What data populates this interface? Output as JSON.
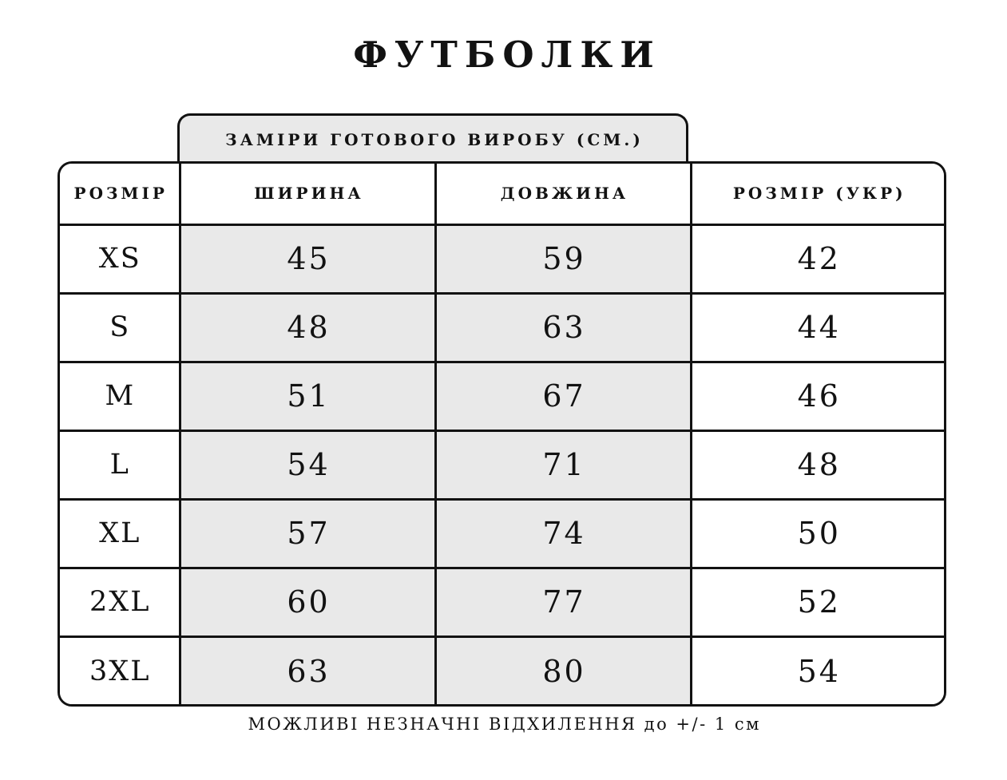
{
  "chart_data": {
    "type": "table",
    "title": "ФУТБОЛКИ",
    "banner": "ЗАМІРИ ГОТОВОГО ВИРОБУ (СМ.)",
    "columns": [
      "РОЗМІР",
      "ШИРИНА",
      "ДОВЖИНА",
      "РОЗМІР (УКР)"
    ],
    "rows": [
      [
        "XS",
        "45",
        "59",
        "42"
      ],
      [
        "S",
        "48",
        "63",
        "44"
      ],
      [
        "M",
        "51",
        "67",
        "46"
      ],
      [
        "L",
        "54",
        "71",
        "48"
      ],
      [
        "XL",
        "57",
        "74",
        "50"
      ],
      [
        "2XL",
        "60",
        "77",
        "52"
      ],
      [
        "3XL",
        "63",
        "80",
        "54"
      ]
    ],
    "footnote": "МОЖЛИВІ НЕЗНАЧНІ ВІДХИЛЕННЯ до +/- 1 см",
    "layout": {
      "shaded_columns": [
        "ШИРИНА",
        "ДОВЖИНА"
      ],
      "grid": "on",
      "legend": "none"
    }
  },
  "colors": {
    "background": "#ffffff",
    "shaded_cell": "#e9e9e9",
    "line": "#121212",
    "text": "#121212"
  }
}
